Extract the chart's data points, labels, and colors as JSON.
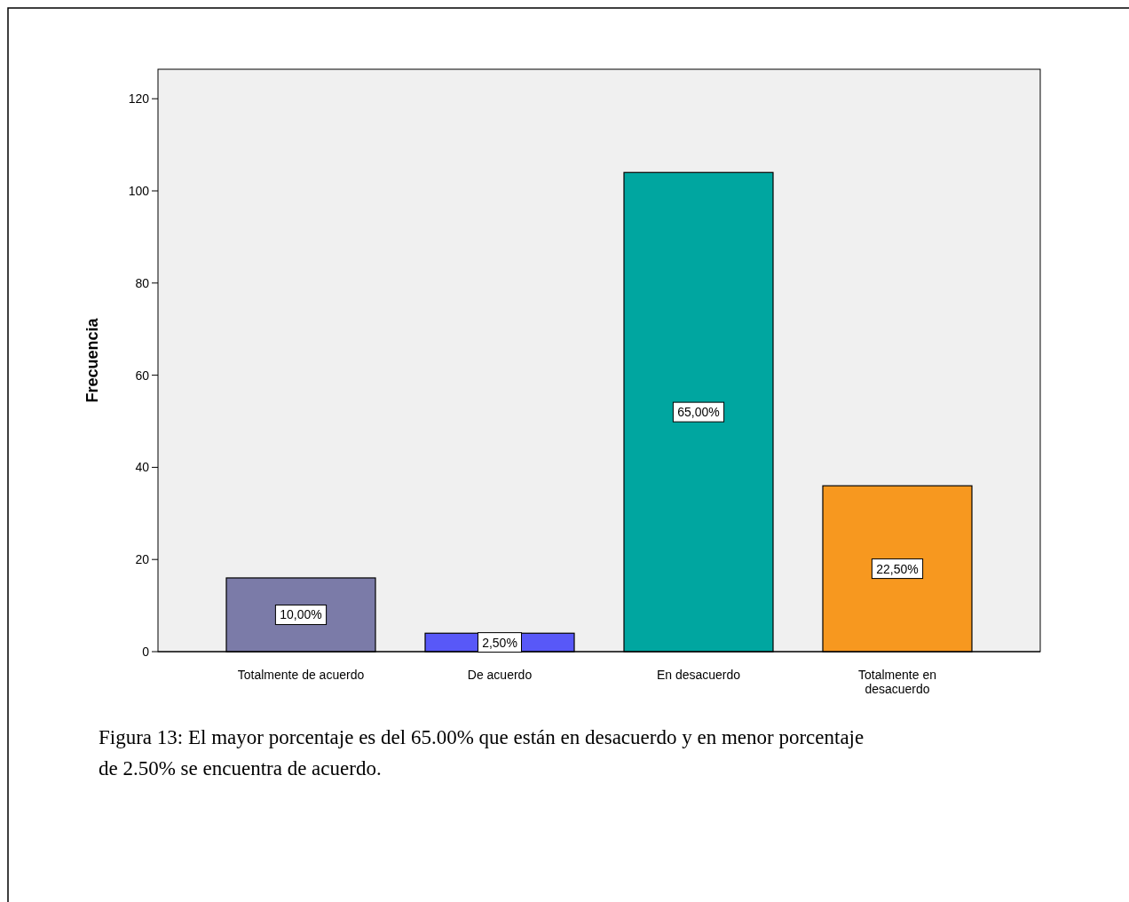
{
  "chart_data": {
    "type": "bar",
    "ylabel": "Frecuencia",
    "categories": [
      "Totalmente de acuerdo",
      "De acuerdo",
      "En desacuerdo",
      "Totalmente en desacuerdo"
    ],
    "values": [
      16,
      4,
      104,
      36
    ],
    "colors": [
      "#7b7ba8",
      "#5858f8",
      "#00a6a0",
      "#f7981f"
    ],
    "ylim": [
      0,
      126.4
    ],
    "yticks": [
      0,
      20,
      40,
      60,
      80,
      100,
      120
    ],
    "grid": false,
    "annotations": [
      "10,00%",
      "2,50%",
      "65,00%",
      "22,50%",
      "Figura 13: El mayor porcentaje es del 65.00%  que están en desacuerdo y en menor porcentaje de 2.50%  se encuentra de acuerdo."
    ]
  }
}
